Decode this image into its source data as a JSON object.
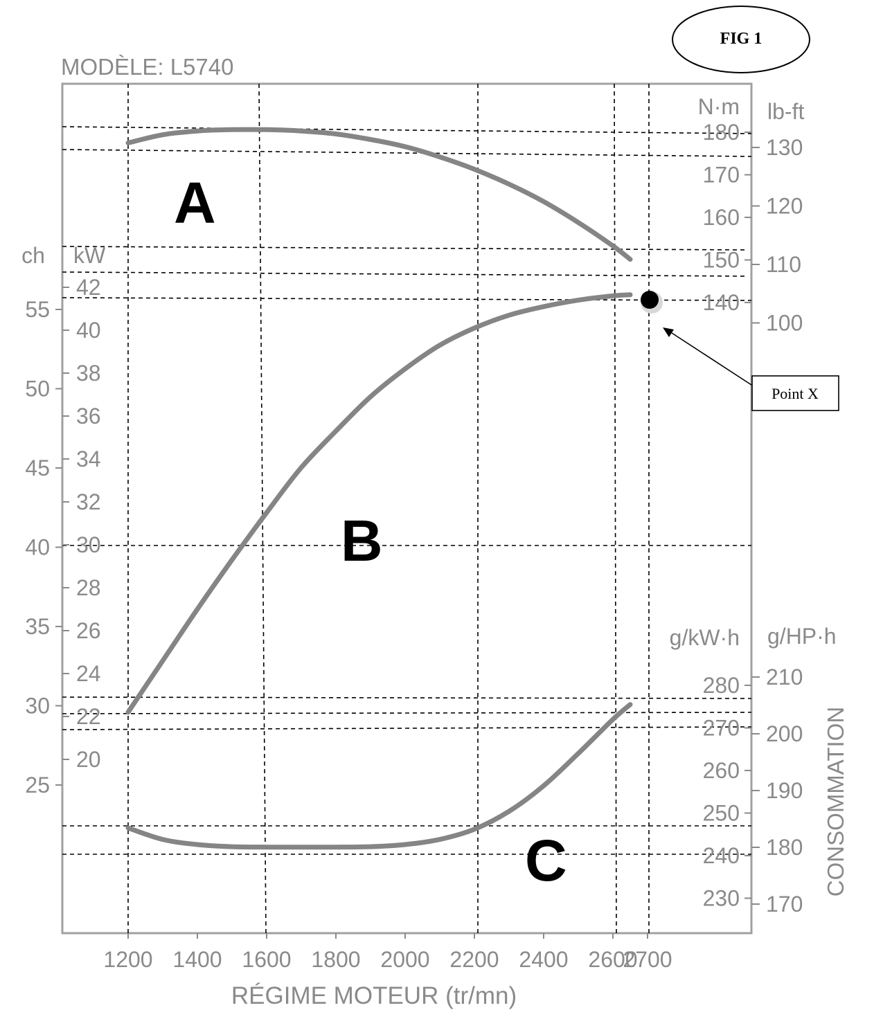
{
  "figure": {
    "label": "FIG 1",
    "callout": "Point X",
    "colors": {
      "curve": "#858585",
      "axis": "#8a8a8a",
      "grid": "#000000",
      "marker": "#000000"
    }
  },
  "chart_data": {
    "type": "line",
    "title": "MODÈLE: L5740",
    "xlabel": "RÉGIME MOTEUR (tr/mn)",
    "xlim": [
      1010,
      2965
    ],
    "x_ticks": [
      1200,
      1400,
      1600,
      1800,
      2000,
      2200,
      2400,
      2600,
      2700
    ],
    "x_tick_labels": [
      "1200",
      "1400",
      "1600",
      "1800",
      "2000",
      "2200",
      "2400",
      "2600",
      "2700"
    ],
    "axes": {
      "power_ch": {
        "unit": "ch",
        "ticks": [
          25,
          30,
          35,
          40,
          45,
          50,
          55
        ],
        "labels": [
          "25",
          "30",
          "35",
          "40",
          "45",
          "50",
          "55"
        ]
      },
      "power_kw": {
        "unit": "kW",
        "ticks": [
          20,
          22,
          24,
          26,
          28,
          30,
          32,
          34,
          36,
          38,
          40,
          42
        ],
        "labels": [
          "20",
          "22",
          "24",
          "26",
          "28",
          "30",
          "32",
          "34",
          "36",
          "38",
          "40",
          "42"
        ]
      },
      "torque_nm": {
        "unit": "N·m",
        "ticks": [
          140,
          150,
          160,
          170,
          180
        ],
        "labels": [
          "140",
          "150",
          "160",
          "170",
          "180"
        ]
      },
      "torque_lbft": {
        "unit": "lb-ft",
        "ticks": [
          100,
          110,
          120,
          130
        ],
        "labels": [
          "100",
          "110",
          "120",
          "130"
        ]
      },
      "consumption_gkwh": {
        "unit": "g/kW·h",
        "ticks": [
          230,
          240,
          250,
          260,
          270,
          280
        ],
        "labels": [
          "230",
          "240",
          "250",
          "260",
          "270",
          "280"
        ]
      },
      "consumption_ghph": {
        "unit": "g/HP·h",
        "ticks": [
          170,
          180,
          190,
          200,
          210
        ],
        "labels": [
          "170",
          "180",
          "190",
          "200",
          "210"
        ]
      },
      "consumption_title": "CONSOMMATION"
    },
    "series": [
      {
        "name": "A",
        "axis": "torque_nm",
        "x": [
          1200,
          1300,
          1400,
          1500,
          1600,
          1700,
          1800,
          1900,
          2000,
          2100,
          2200,
          2300,
          2400,
          2500,
          2600,
          2700
        ],
        "values": [
          177.5,
          179.4,
          180.3,
          180.6,
          180.6,
          180.3,
          179.6,
          178.3,
          176.6,
          174.2,
          171.3,
          167.8,
          163.7,
          158.8,
          153.3,
          147.0
        ]
      },
      {
        "name": "B",
        "axis": "power_kw",
        "x": [
          1200,
          1300,
          1400,
          1500,
          1600,
          1700,
          1800,
          1900,
          2000,
          2100,
          2200,
          2300,
          2400,
          2500,
          2600,
          2700
        ],
        "values": [
          22.2,
          24.6,
          27.0,
          29.3,
          31.5,
          33.6,
          35.3,
          36.9,
          38.2,
          39.3,
          40.1,
          40.7,
          41.1,
          41.4,
          41.6,
          41.7
        ]
      },
      {
        "name": "C",
        "axis": "consumption_gkwh",
        "x": [
          1200,
          1300,
          1400,
          1500,
          1600,
          1700,
          1800,
          1900,
          2000,
          2100,
          2200,
          2300,
          2400,
          2500,
          2600,
          2700
        ],
        "values": [
          246.5,
          243.8,
          242.6,
          242.1,
          242.0,
          242.0,
          242.0,
          242.1,
          242.6,
          243.8,
          246.2,
          250.4,
          256.4,
          264.0,
          272.0,
          279.0
        ]
      }
    ],
    "grid": "dashed reference lines",
    "legend": "none"
  }
}
